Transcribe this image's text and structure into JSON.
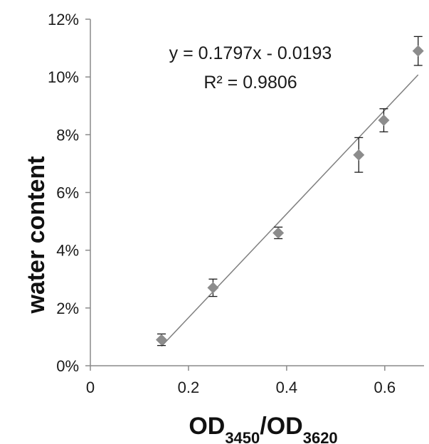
{
  "chart_data": {
    "type": "scatter",
    "xlabel_parts": [
      {
        "text": "OD",
        "sub": false
      },
      {
        "text": "3450",
        "sub": true
      },
      {
        "text": "/OD",
        "sub": false
      },
      {
        "text": "3620",
        "sub": true
      }
    ],
    "ylabel": "water content",
    "xlim": [
      0,
      0.68
    ],
    "ylim": [
      0,
      0.12
    ],
    "x_ticks": [
      {
        "value": 0,
        "label": "0"
      },
      {
        "value": 0.2,
        "label": "0.2"
      },
      {
        "value": 0.4,
        "label": "0.4"
      },
      {
        "value": 0.6,
        "label": "0.6"
      }
    ],
    "y_ticks": [
      {
        "value": 0.0,
        "label": "0%"
      },
      {
        "value": 0.02,
        "label": "2%"
      },
      {
        "value": 0.04,
        "label": "4%"
      },
      {
        "value": 0.06,
        "label": "6%"
      },
      {
        "value": 0.08,
        "label": "8%"
      },
      {
        "value": 0.1,
        "label": "10%"
      },
      {
        "value": 0.12,
        "label": "12%"
      }
    ],
    "points": [
      {
        "x": 0.145,
        "y": 0.009,
        "err": 0.002
      },
      {
        "x": 0.25,
        "y": 0.027,
        "err": 0.003
      },
      {
        "x": 0.383,
        "y": 0.046,
        "err": 0.002
      },
      {
        "x": 0.547,
        "y": 0.073,
        "err": 0.006
      },
      {
        "x": 0.598,
        "y": 0.085,
        "err": 0.004
      },
      {
        "x": 0.668,
        "y": 0.109,
        "err": 0.005
      }
    ],
    "trendline": {
      "slope": 0.1797,
      "intercept": -0.0193,
      "x_range": [
        0.145,
        0.668
      ],
      "equation": "y = 0.1797x - 0.0193",
      "r_squared": "R² = 0.9806"
    },
    "grid": false,
    "legend": "none",
    "colors": {
      "marker": "#8c8c8c",
      "trendline": "#7f7f7f",
      "axis": "#8a8a8a",
      "errorbar": "#1a1a1a"
    }
  }
}
